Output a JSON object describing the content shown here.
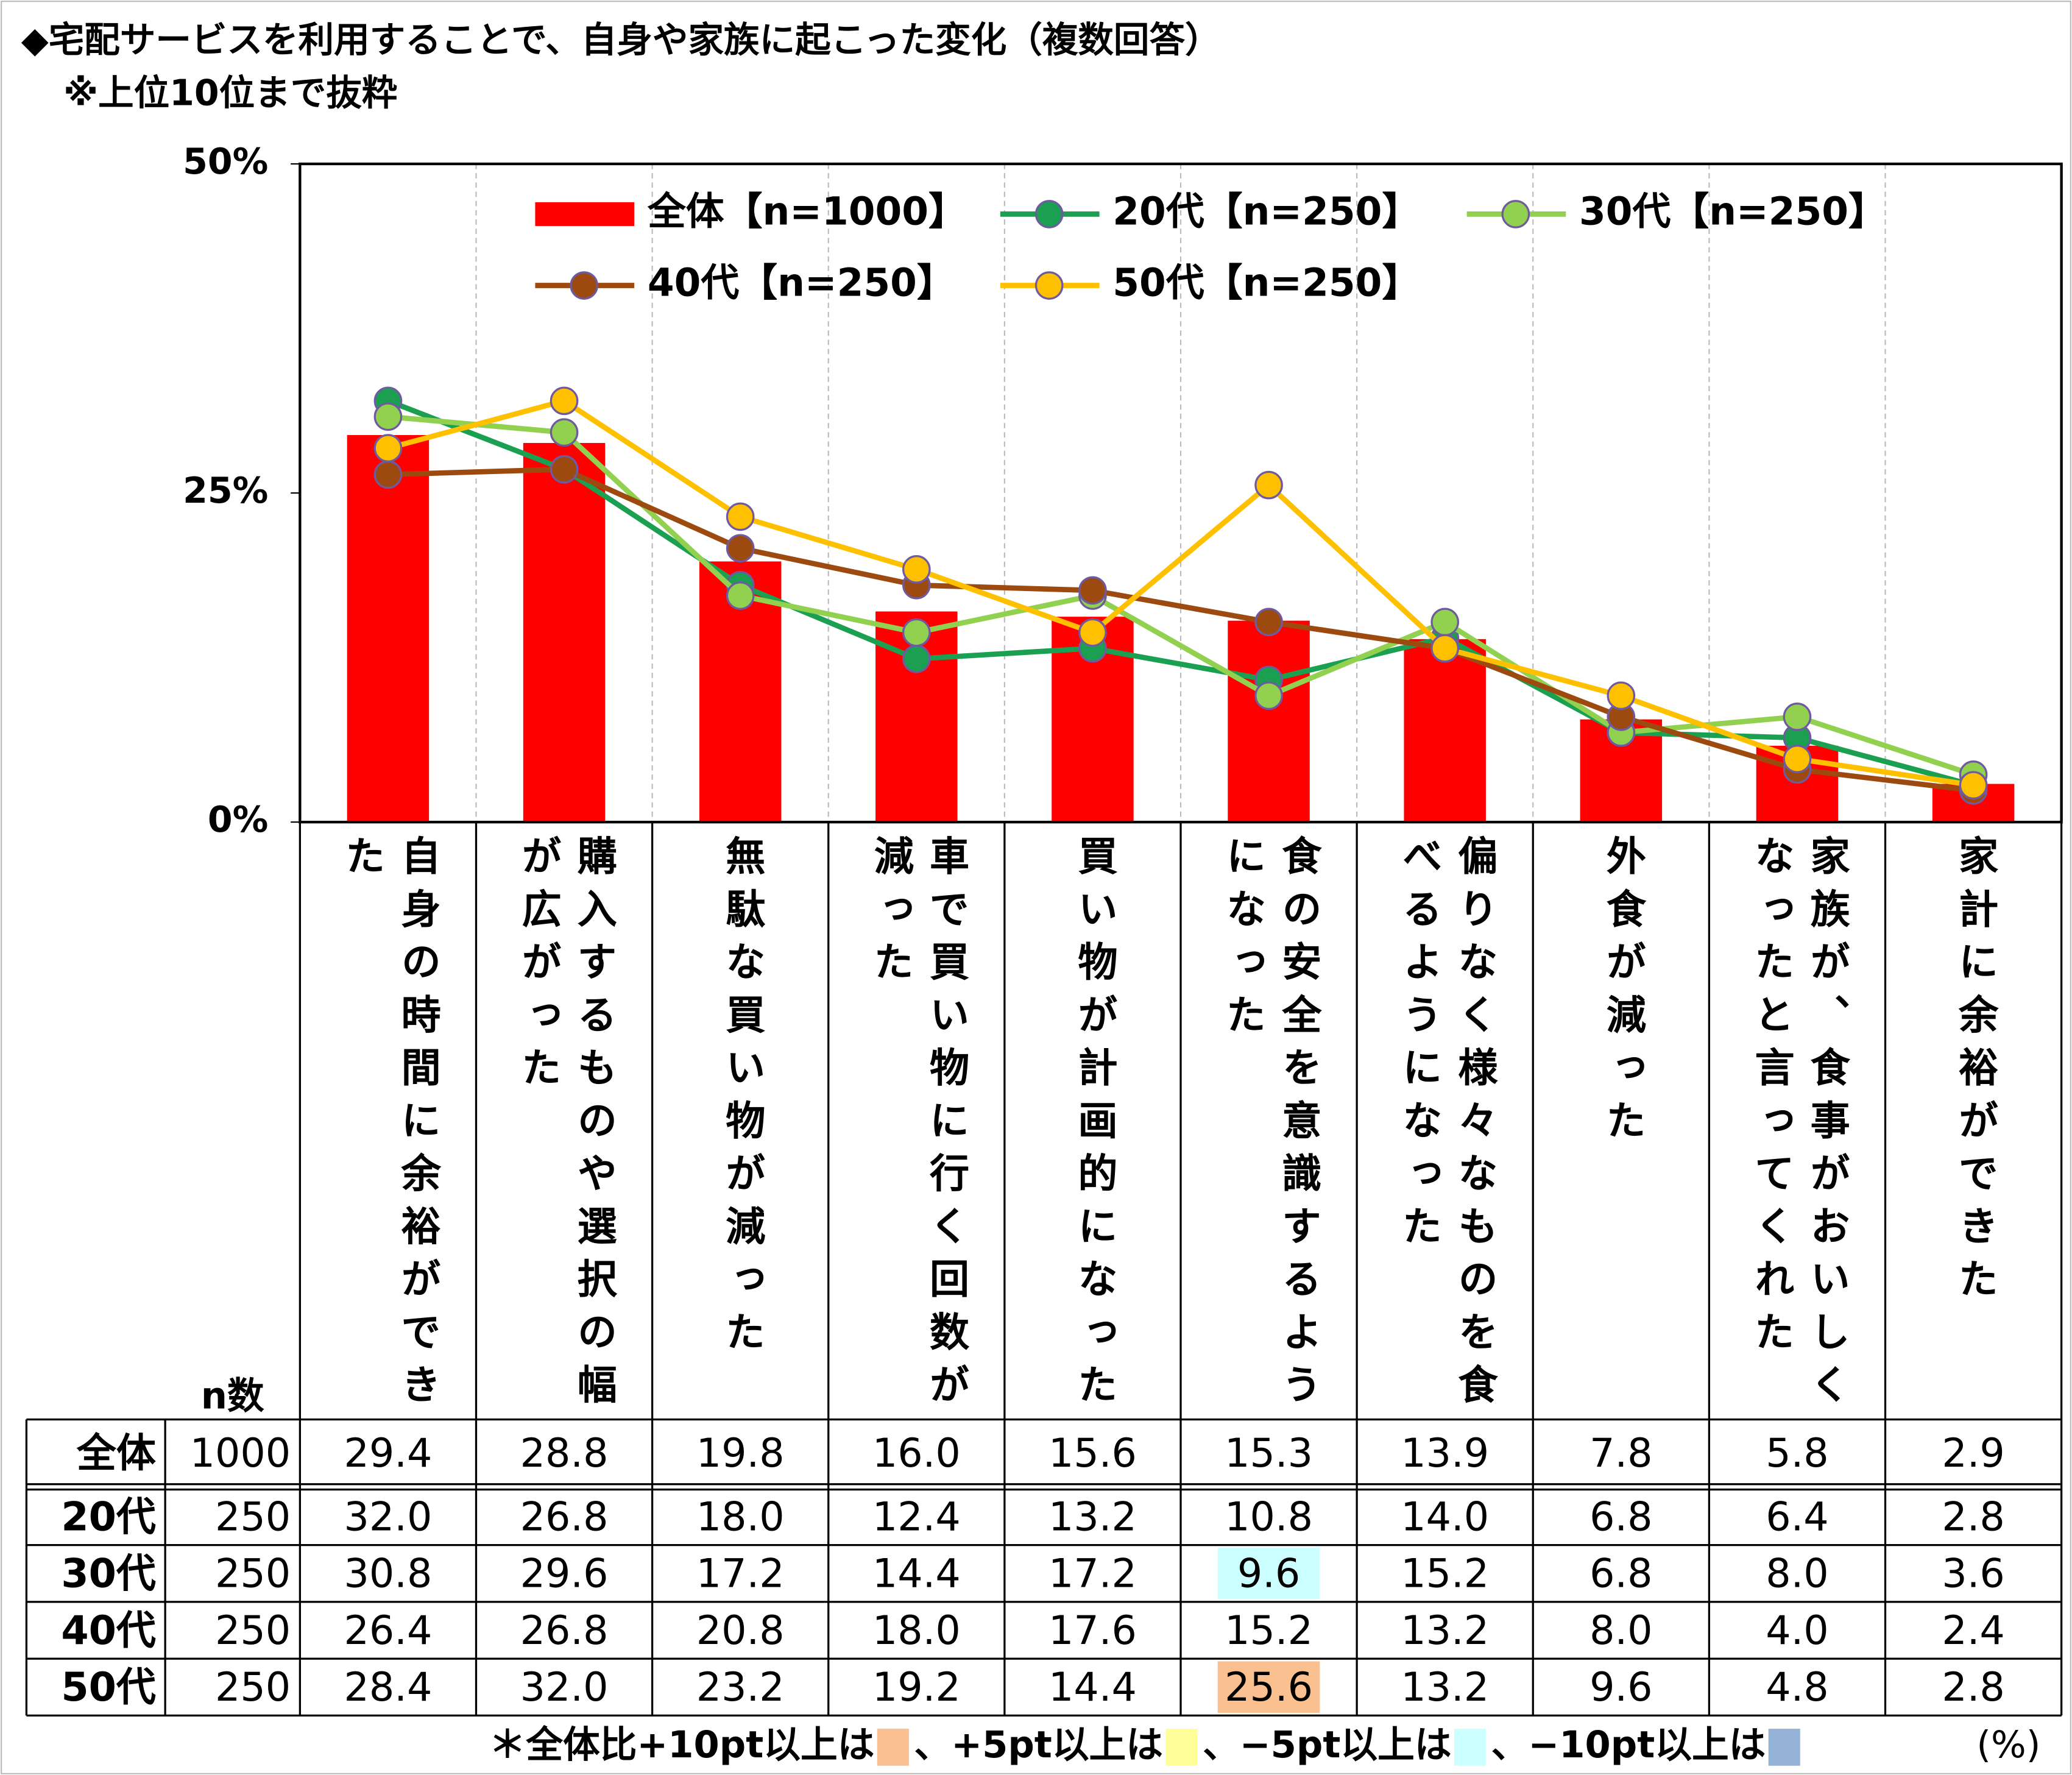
{
  "chart_data": {
    "type": "bar",
    "title": "◆宅配サービスを利用することで、自身や家族に起こった変化（複数回答）",
    "subtitle": "※上位10位まで抜粋",
    "categories": [
      "自身の時間に余裕ができた",
      "購入するものや選択の幅が広がった",
      "無駄な買い物が減った",
      "車で買い物に行く回数が減った",
      "買い物が計画的になった",
      "食の安全を意識するようになった",
      "偏りなく様々なものを食べるようになった",
      "外食が減った",
      "家族が、食事がおいしくなったと言ってくれた",
      "家計に余裕ができた"
    ],
    "ylim": [
      0,
      50
    ],
    "yticks": [
      {
        "value": 0,
        "label": "0%"
      },
      {
        "value": 25,
        "label": "25%"
      },
      {
        "value": 50,
        "label": "50%"
      }
    ],
    "grid": true,
    "series": [
      {
        "name": "全体【n=1000】",
        "type": "bar",
        "color": "#ff0000",
        "values": [
          29.4,
          28.8,
          19.8,
          16.0,
          15.6,
          15.3,
          13.9,
          7.8,
          5.8,
          2.9
        ],
        "value_labels": [
          "29.4",
          "28.8",
          "19.8",
          "16.0",
          "15.6",
          "15.3",
          "13.9",
          "7.8",
          "5.8",
          "2.9"
        ],
        "cell_colors": [
          null,
          null,
          null,
          null,
          null,
          null,
          null,
          null,
          null,
          null
        ]
      },
      {
        "name": "20代【n=250】",
        "type": "line",
        "color": "#1aa050",
        "values": [
          32.0,
          26.8,
          18.0,
          12.4,
          13.2,
          10.8,
          14.0,
          6.8,
          6.4,
          2.8
        ],
        "value_labels": [
          "32.0",
          "26.8",
          "18.0",
          "12.4",
          "13.2",
          "10.8",
          "14.0",
          "6.8",
          "6.4",
          "2.8"
        ],
        "cell_colors": [
          null,
          null,
          null,
          null,
          null,
          null,
          null,
          null,
          null,
          null
        ]
      },
      {
        "name": "30代【n=250】",
        "type": "line",
        "color": "#92d050",
        "values": [
          30.8,
          29.6,
          17.2,
          14.4,
          17.2,
          9.6,
          15.2,
          6.8,
          8.0,
          3.6
        ],
        "value_labels": [
          "30.8",
          "29.6",
          "17.2",
          "14.4",
          "17.2",
          "9.6",
          "15.2",
          "6.8",
          "8.0",
          "3.6"
        ],
        "cell_colors": [
          null,
          null,
          null,
          null,
          null,
          "#ccffff",
          null,
          null,
          null,
          null
        ]
      },
      {
        "name": "40代【n=250】",
        "type": "line",
        "color": "#9c4a10",
        "values": [
          26.4,
          26.8,
          20.8,
          18.0,
          17.6,
          15.2,
          13.2,
          8.0,
          4.0,
          2.4
        ],
        "value_labels": [
          "26.4",
          "26.8",
          "20.8",
          "18.0",
          "17.6",
          "15.2",
          "13.2",
          "8.0",
          "4.0",
          "2.4"
        ],
        "cell_colors": [
          null,
          null,
          null,
          null,
          null,
          null,
          null,
          null,
          null,
          null
        ]
      },
      {
        "name": "50代【n=250】",
        "type": "line",
        "color": "#ffc000",
        "values": [
          28.4,
          32.0,
          23.2,
          19.2,
          14.4,
          25.6,
          13.2,
          9.6,
          4.8,
          2.8
        ],
        "value_labels": [
          "28.4",
          "32.0",
          "23.2",
          "19.2",
          "14.4",
          "25.6",
          "13.2",
          "9.6",
          "4.8",
          "2.8"
        ],
        "cell_colors": [
          null,
          null,
          null,
          null,
          null,
          "#fac090",
          null,
          null,
          null,
          null
        ]
      }
    ],
    "table": {
      "n_header": "n数",
      "rows": [
        {
          "label": "全体",
          "n": 1000
        },
        {
          "label": "20代",
          "n": 250
        },
        {
          "label": "30代",
          "n": 250
        },
        {
          "label": "40代",
          "n": 250
        },
        {
          "label": "50代",
          "n": 250
        }
      ]
    },
    "footnote": [
      {
        "text": "＊全体比+10pt以上は",
        "color": "#fac090"
      },
      {
        "text": "、+5pt以上は",
        "color": "#ffff99"
      },
      {
        "text": "、−5pt以上は",
        "color": "#ccffff"
      },
      {
        "text": "、−10pt以上は",
        "color": "#95b3d7"
      }
    ],
    "unit": "(%)"
  }
}
